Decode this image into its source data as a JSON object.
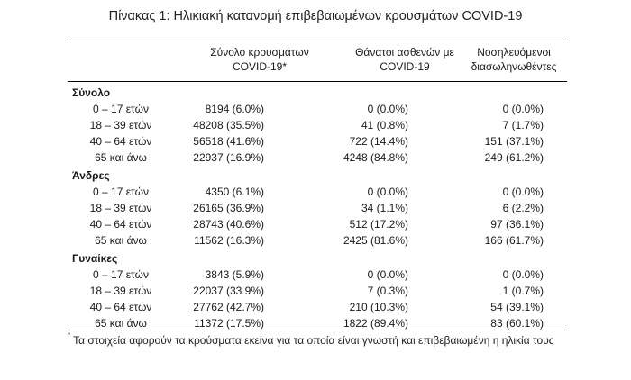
{
  "title": "Πίνακας 1: Ηλικιακή κατανομή επιβεβαιωμένων κρουσμάτων COVID-19",
  "headers": {
    "col1_line1": "Σύνολο κρουσμάτων",
    "col1_line2": "COVID-19*",
    "col2_line1": "Θάνατοι ασθενών με",
    "col2_line2": "COVID-19",
    "col3_line1": "Νοσηλευόμενοι",
    "col3_line2": "διασωληνωθέντες"
  },
  "groups": [
    {
      "name": "Σύνολο",
      "rows": [
        {
          "age": "0 – 17 ετών",
          "cases": "8194 (6.0%)",
          "deaths": "0 (0.0%)",
          "intubated": "0 (0.0%)"
        },
        {
          "age": "18 – 39 ετών",
          "cases": "48208 (35.5%)",
          "deaths": "41 (0.8%)",
          "intubated": "7 (1.7%)"
        },
        {
          "age": "40 – 64 ετών",
          "cases": "56518 (41.6%)",
          "deaths": "722 (14.4%)",
          "intubated": "151 (37.1%)"
        },
        {
          "age": "65 και άνω",
          "cases": "22937 (16.9%)",
          "deaths": "4248 (84.8%)",
          "intubated": "249 (61.2%)"
        }
      ]
    },
    {
      "name": "Άνδρες",
      "rows": [
        {
          "age": "0 – 17 ετών",
          "cases": "4350 (6.1%)",
          "deaths": "0 (0.0%)",
          "intubated": "0 (0.0%)"
        },
        {
          "age": "18 – 39 ετών",
          "cases": "26165 (36.9%)",
          "deaths": "34 (1.1%)",
          "intubated": "6 (2.2%)"
        },
        {
          "age": "40 – 64 ετών",
          "cases": "28743 (40.6%)",
          "deaths": "512 (17.2%)",
          "intubated": "97 (36.1%)"
        },
        {
          "age": "65 και άνω",
          "cases": "11562 (16.3%)",
          "deaths": "2425 (81.6%)",
          "intubated": "166 (61.7%)"
        }
      ]
    },
    {
      "name": "Γυναίκες",
      "rows": [
        {
          "age": "0 – 17 ετών",
          "cases": "3843 (5.9%)",
          "deaths": "0 (0.0%)",
          "intubated": "0 (0.0%)"
        },
        {
          "age": "18 – 39 ετών",
          "cases": "22037 (33.9%)",
          "deaths": "7 (0.3%)",
          "intubated": "1 (0.7%)"
        },
        {
          "age": "40 – 64 ετών",
          "cases": "27762 (42.7%)",
          "deaths": "210 (10.3%)",
          "intubated": "54 (39.1%)"
        },
        {
          "age": "65 και άνω",
          "cases": "11372 (17.5%)",
          "deaths": "1822 (89.4%)",
          "intubated": "83 (60.1%)"
        }
      ]
    }
  ],
  "footnote": {
    "marker": "*",
    "text": "Τα στοιχεία αφορούν τα κρούσματα εκείνα για τα οποία είναι γνωστή και επιβεβαιωμένη η ηλικία τους"
  }
}
